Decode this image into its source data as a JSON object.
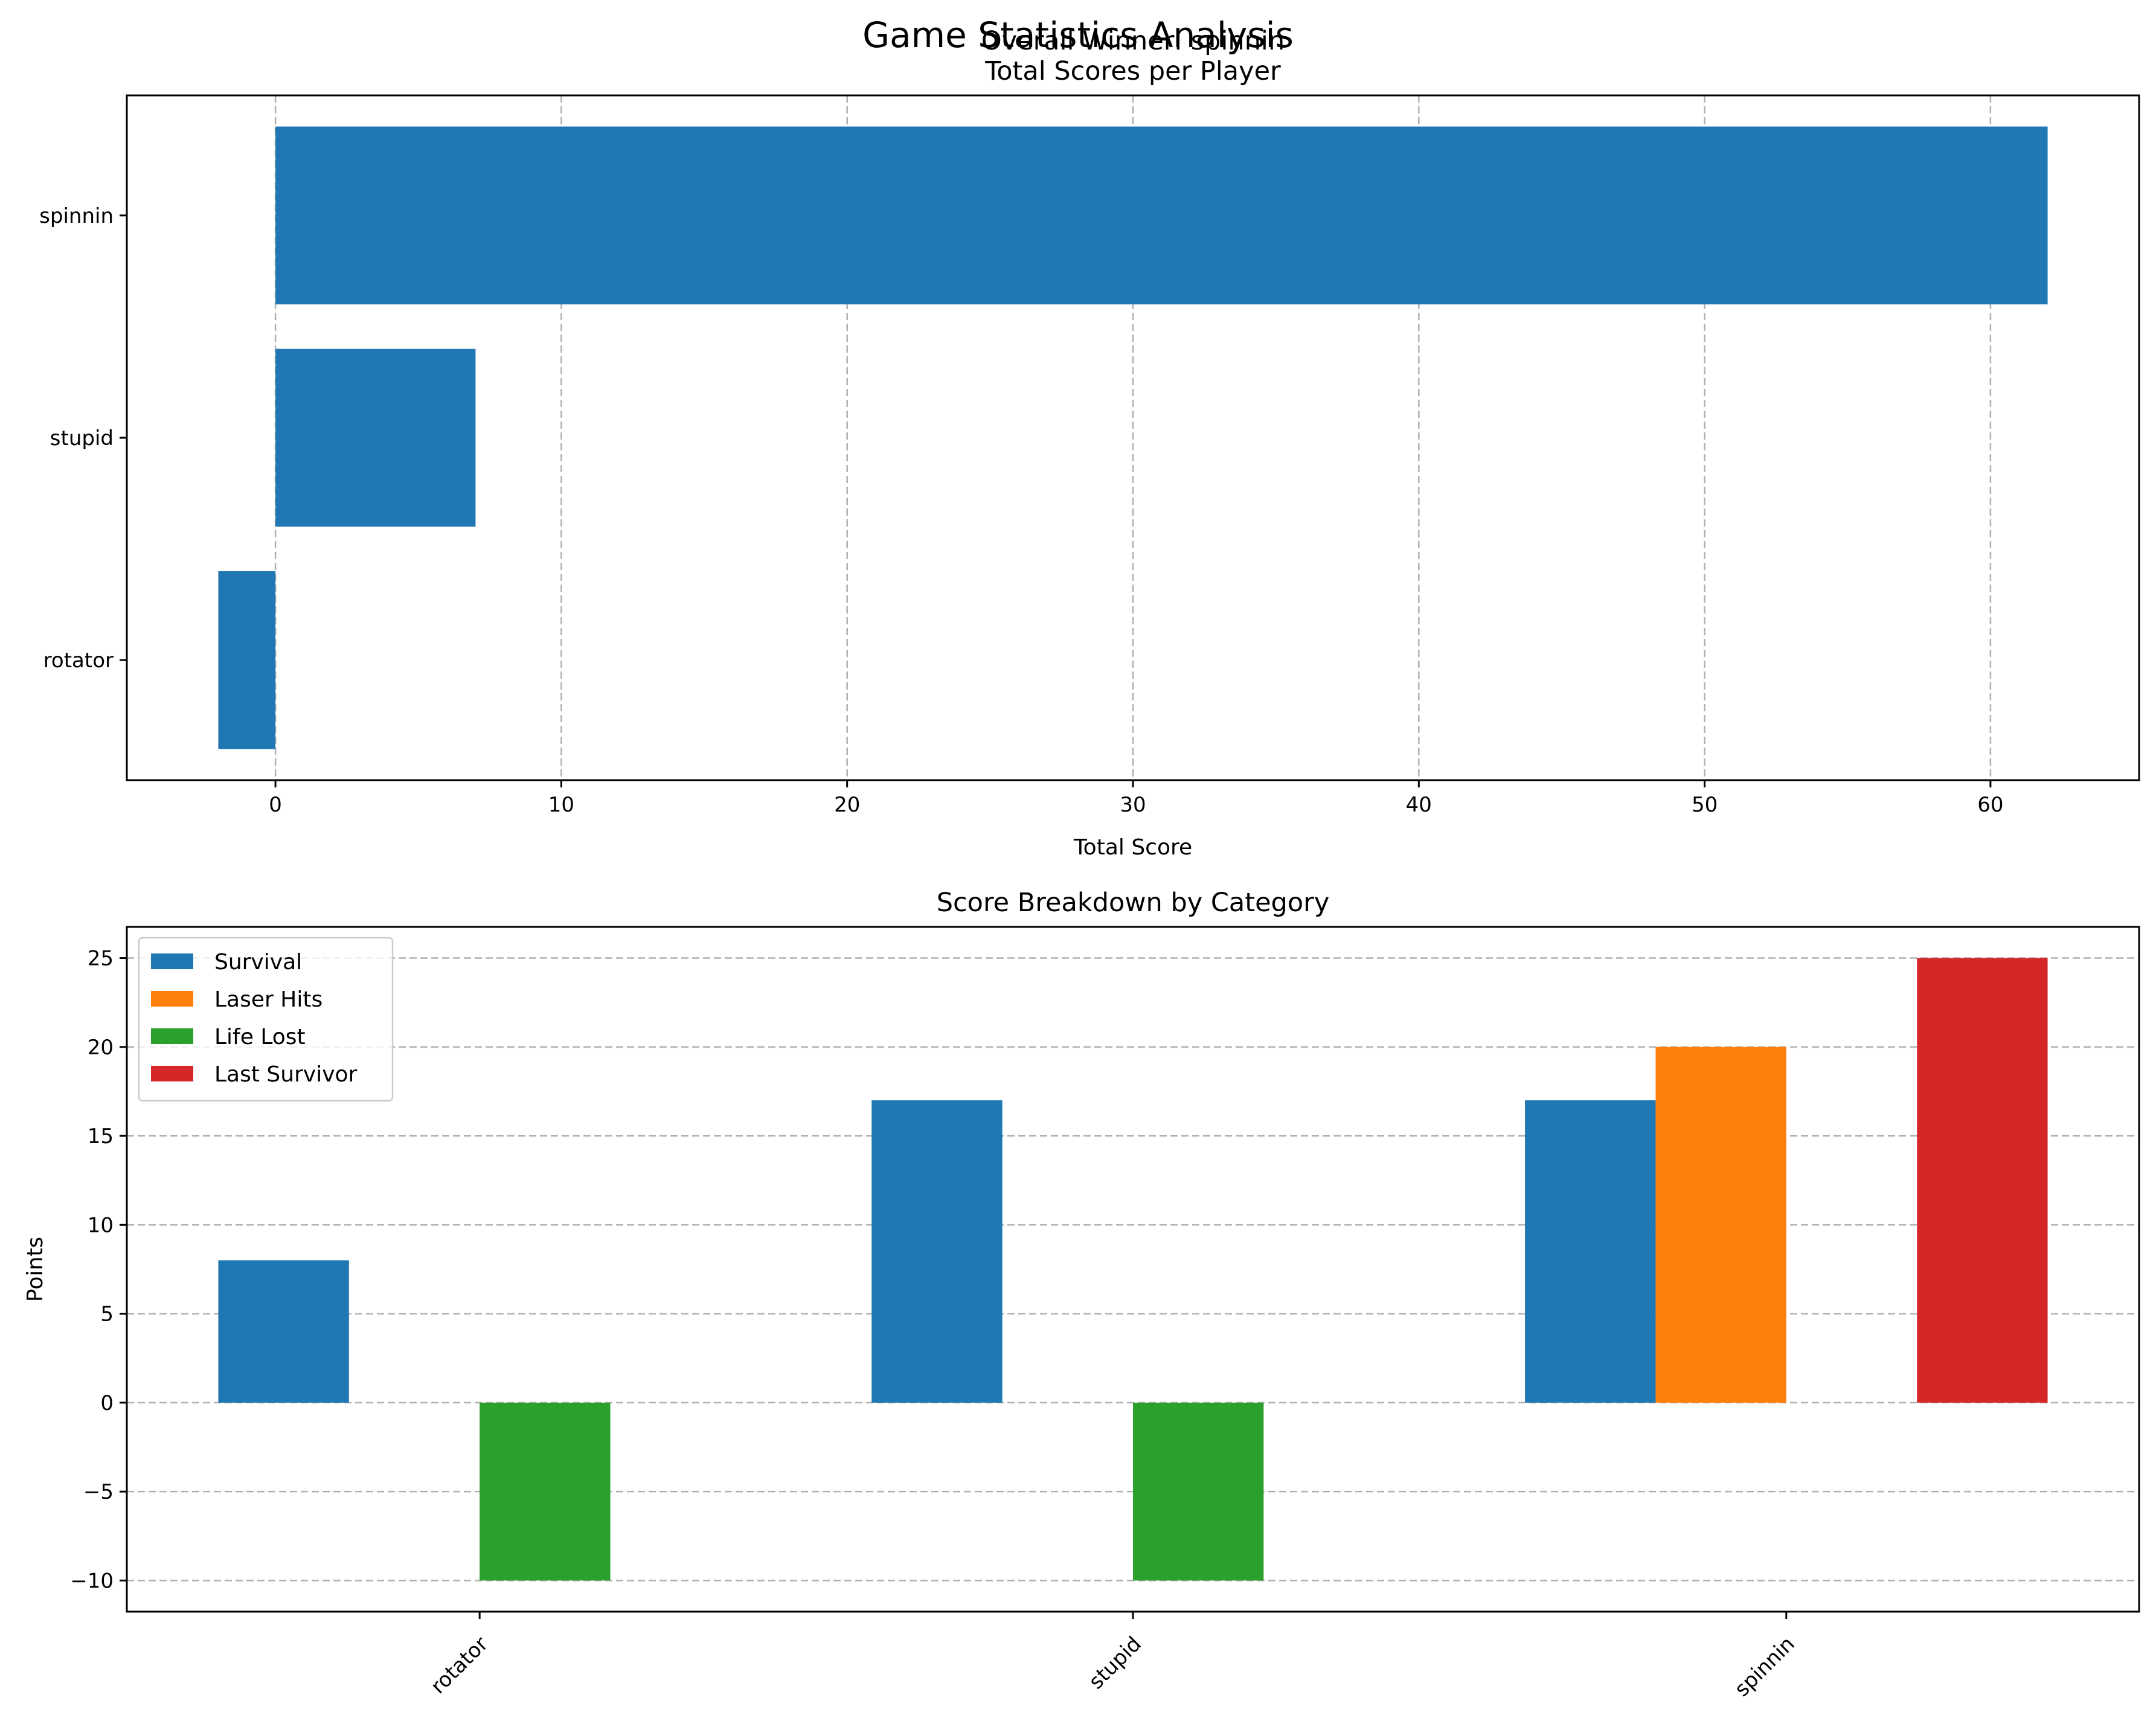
{
  "figure": {
    "suptitle": "Game Statistics Analysis"
  },
  "chart_data": [
    {
      "type": "bar",
      "orientation": "horizontal",
      "title": "Overall Winner: spinnin\nTotal Scores per Player",
      "title_line1": "Overall Winner: spinnin",
      "title_line2": "Total Scores per Player",
      "xlabel": "Total Score",
      "ylabel": "",
      "categories": [
        "rotator",
        "stupid",
        "spinnin"
      ],
      "values": [
        -2,
        7,
        62
      ],
      "xlim": [
        -5.2,
        65.2
      ],
      "xticks": [
        0,
        10,
        20,
        30,
        40,
        50,
        60
      ],
      "grid": "x",
      "color": "#1f77b4"
    },
    {
      "type": "bar",
      "orientation": "vertical",
      "title": "Score Breakdown by Category",
      "xlabel": "",
      "ylabel": "Points",
      "categories": [
        "rotator",
        "stupid",
        "spinnin"
      ],
      "ylim": [
        -11.75,
        26.75
      ],
      "yticks": [
        -10,
        -5,
        0,
        5,
        10,
        15,
        20,
        25
      ],
      "ytick_labels": [
        "−10",
        "−5",
        "0",
        "5",
        "10",
        "15",
        "20",
        "25"
      ],
      "grid": "y",
      "legend_position": "top-left",
      "series": [
        {
          "name": "Survival",
          "color": "#1f77b4",
          "values": [
            8,
            17,
            17
          ]
        },
        {
          "name": "Laser Hits",
          "color": "#ff7f0e",
          "values": [
            0,
            0,
            20
          ]
        },
        {
          "name": "Life Lost",
          "color": "#2ca02c",
          "values": [
            -10,
            -10,
            0
          ]
        },
        {
          "name": "Last Survivor",
          "color": "#d62728",
          "values": [
            0,
            0,
            25
          ]
        }
      ]
    }
  ]
}
